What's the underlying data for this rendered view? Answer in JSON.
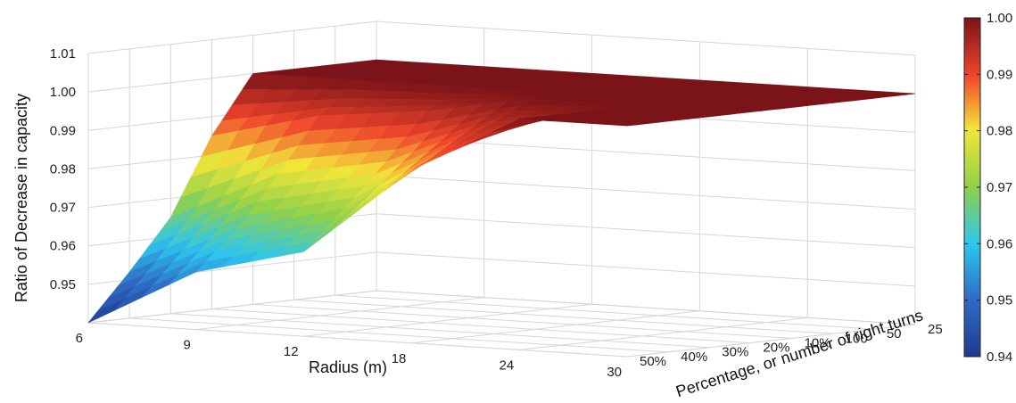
{
  "chart_data": {
    "type": "surface",
    "title": "",
    "zlabel": "Ratio of Decrease in capacity",
    "xlabel": "Radius (m)",
    "ylabel": "Percentage, or number of right turns",
    "x_ticks": [
      "6",
      "9",
      "12",
      "18",
      "24",
      "30"
    ],
    "y_ticks": [
      "50%",
      "40%",
      "30%",
      "20%",
      "10%",
      "100",
      "50",
      "25"
    ],
    "z_ticks": [
      "0.95",
      "0.96",
      "0.97",
      "0.98",
      "0.99",
      "1.00",
      "1.01"
    ],
    "zlim": [
      0.94,
      1.01
    ],
    "grid": true,
    "colorbar": {
      "min": 0.94,
      "max": 1.0,
      "ticks": [
        "0.94",
        "0.95",
        "0.96",
        "0.97",
        "0.98",
        "0.99",
        "1.00"
      ],
      "colormap": "jet",
      "placement": "right"
    },
    "z_values": [
      [
        0.94,
        0.952,
        0.965,
        0.985,
        1.0,
        1.0,
        1.0,
        1.0
      ],
      [
        0.955,
        0.965,
        0.978,
        0.992,
        1.0,
        1.0,
        1.0,
        1.0
      ],
      [
        0.962,
        0.972,
        0.983,
        0.995,
        1.0,
        1.0,
        1.0,
        1.0
      ],
      [
        0.985,
        0.99,
        0.995,
        1.0,
        1.0,
        1.0,
        1.0,
        1.0
      ],
      [
        1.0,
        1.0,
        1.0,
        1.0,
        1.0,
        1.0,
        1.0,
        1.0
      ],
      [
        1.0,
        1.0,
        1.0,
        1.0,
        1.0,
        1.0,
        1.0,
        1.0
      ]
    ]
  }
}
